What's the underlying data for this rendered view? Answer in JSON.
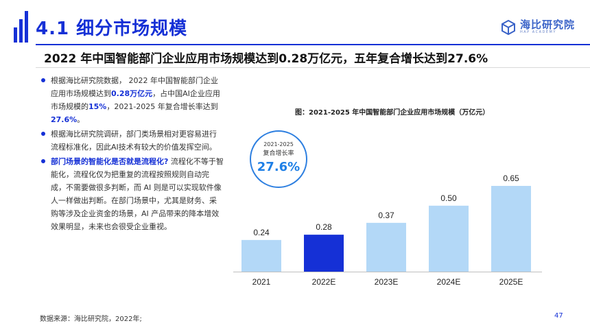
{
  "header": {
    "title": "4.1 细分市场规模",
    "brand_name": "海比研究院",
    "brand_sub": "HAP ACADEMY",
    "accent": "#1530d6"
  },
  "headline": "2022 年中国智能部门企业应用市场规模达到0.28万亿元，五年复合增长达到27.6%",
  "bullets": [
    {
      "parts": [
        {
          "text": "根据海比研究院数据， 2022 年中国智能部门企业应用市场规模达到",
          "hl": false
        },
        {
          "text": "0.28万亿元",
          "hl": true
        },
        {
          "text": "，占中国AI企业应用市场规模的",
          "hl": false
        },
        {
          "text": "15%",
          "hl": true
        },
        {
          "text": "，2021-2025 年复合增长率达到",
          "hl": false
        },
        {
          "text": "27.6%",
          "hl": true
        },
        {
          "text": "。",
          "hl": false
        }
      ]
    },
    {
      "parts": [
        {
          "text": "根据海比研究院调研，部门类场景相对更容易进行流程标准化，因此AI技术有较大的价值发挥空间。",
          "hl": false
        }
      ]
    },
    {
      "parts": [
        {
          "text": "部门场景的智能化是否就是流程化?",
          "hl": true
        },
        {
          "text": " 流程化不等于智能化，流程化仅为把重复的流程按照规则自动完成，不需要做很多判断，而 AI 则是可以实现软件像人一样做出判断。在部门场景中，尤其是财务、采购等涉及企业资金的场景，AI 产品带来的降本增效效果明显，未来也会很受企业重视。",
          "hl": false
        }
      ]
    }
  ],
  "cagr_badge": {
    "years": "2021-2025",
    "label": "复合增长率",
    "value": "27.6%"
  },
  "chart_data": {
    "type": "bar",
    "title": "图：2021-2025 年中国智能部门企业应用市场规模（万亿元）",
    "categories": [
      "2021",
      "2022E",
      "2023E",
      "2024E",
      "2025E"
    ],
    "values": [
      0.24,
      0.28,
      0.37,
      0.5,
      0.65
    ],
    "value_labels": [
      "0.24",
      "0.28",
      "0.37",
      "0.50",
      "0.65"
    ],
    "colors": [
      "#b3d8f7",
      "#1530d6",
      "#b3d8f7",
      "#b3d8f7",
      "#b3d8f7"
    ],
    "ylim": [
      0,
      0.65
    ],
    "grid": false,
    "xlabel": "",
    "ylabel": ""
  },
  "footer": {
    "source": "数据来源：海比研究院，2022年;",
    "page": "47"
  }
}
